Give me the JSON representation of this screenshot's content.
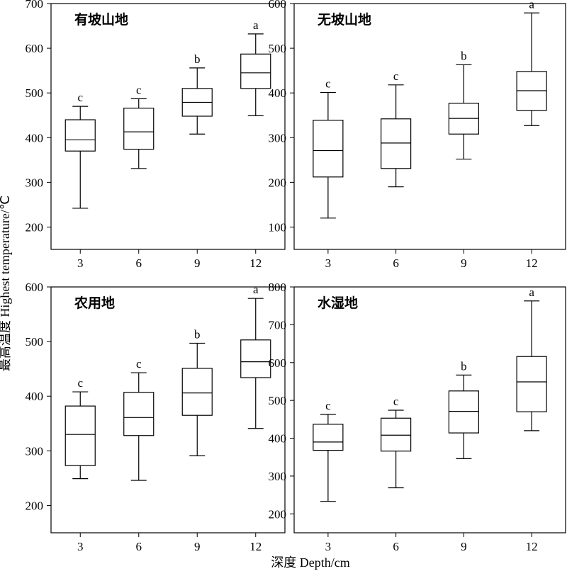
{
  "figure": {
    "ylabel": "最高温度 Highest temperature/℃",
    "xlabel": "深度 Depth/cm"
  },
  "chart_data": [
    {
      "type": "box",
      "title": "有坡山地",
      "categories": [
        "3",
        "6",
        "9",
        "12"
      ],
      "ylim": [
        150,
        700
      ],
      "yticks": [
        200,
        300,
        400,
        500,
        600,
        700
      ],
      "boxes": [
        {
          "min": 242,
          "q1": 370,
          "median": 395,
          "q3": 440,
          "max": 470,
          "letter": "c"
        },
        {
          "min": 331,
          "q1": 374,
          "median": 413,
          "q3": 466,
          "max": 487,
          "letter": "c"
        },
        {
          "min": 408,
          "q1": 448,
          "median": 479,
          "q3": 510,
          "max": 556,
          "letter": "b"
        },
        {
          "min": 449,
          "q1": 510,
          "median": 545,
          "q3": 587,
          "max": 632,
          "letter": "a"
        }
      ]
    },
    {
      "type": "box",
      "title": "无坡山地",
      "categories": [
        "3",
        "6",
        "9",
        "12"
      ],
      "ylim": [
        50,
        600
      ],
      "yticks": [
        100,
        200,
        300,
        400,
        500,
        600
      ],
      "boxes": [
        {
          "min": 120,
          "q1": 212,
          "median": 271,
          "q3": 339,
          "max": 401,
          "letter": "c"
        },
        {
          "min": 190,
          "q1": 231,
          "median": 288,
          "q3": 342,
          "max": 418,
          "letter": "c"
        },
        {
          "min": 252,
          "q1": 308,
          "median": 343,
          "q3": 377,
          "max": 463,
          "letter": "b"
        },
        {
          "min": 327,
          "q1": 361,
          "median": 405,
          "q3": 448,
          "max": 579,
          "letter": "a"
        }
      ]
    },
    {
      "type": "box",
      "title": "农用地",
      "categories": [
        "3",
        "6",
        "9",
        "12"
      ],
      "ylim": [
        150,
        600
      ],
      "yticks": [
        200,
        300,
        400,
        500,
        600
      ],
      "boxes": [
        {
          "min": 249,
          "q1": 273,
          "median": 330,
          "q3": 382,
          "max": 408,
          "letter": "c"
        },
        {
          "min": 246,
          "q1": 328,
          "median": 361,
          "q3": 407,
          "max": 443,
          "letter": "c"
        },
        {
          "min": 291,
          "q1": 365,
          "median": 406,
          "q3": 451,
          "max": 497,
          "letter": "b"
        },
        {
          "min": 341,
          "q1": 434,
          "median": 463,
          "q3": 503,
          "max": 579,
          "letter": "a"
        }
      ]
    },
    {
      "type": "box",
      "title": "水湿地",
      "categories": [
        "3",
        "6",
        "9",
        "12"
      ],
      "ylim": [
        150,
        800
      ],
      "yticks": [
        200,
        300,
        400,
        500,
        600,
        700,
        800
      ],
      "boxes": [
        {
          "min": 233,
          "q1": 368,
          "median": 390,
          "q3": 437,
          "max": 463,
          "letter": "c"
        },
        {
          "min": 269,
          "q1": 366,
          "median": 408,
          "q3": 453,
          "max": 474,
          "letter": "c"
        },
        {
          "min": 346,
          "q1": 414,
          "median": 471,
          "q3": 525,
          "max": 567,
          "letter": "b"
        },
        {
          "min": 420,
          "q1": 470,
          "median": 549,
          "q3": 616,
          "max": 763,
          "letter": "a"
        }
      ]
    }
  ]
}
